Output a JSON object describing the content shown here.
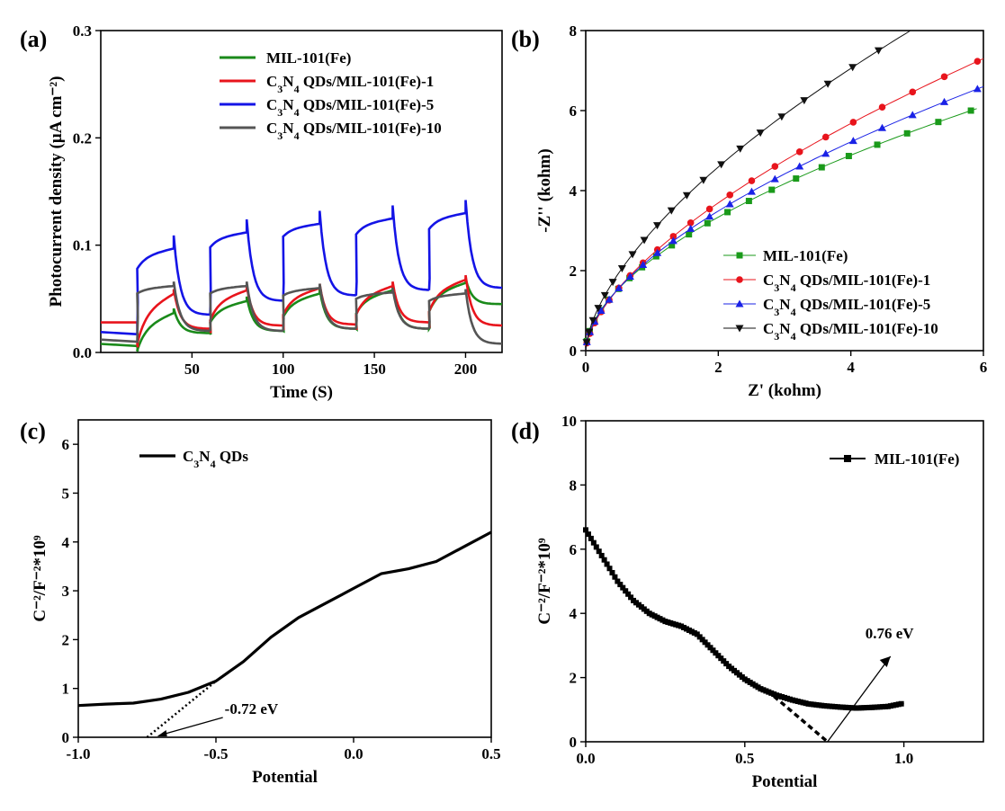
{
  "panels": [
    {
      "label": "(a)",
      "chart_data": {
        "type": "line",
        "title": "",
        "xlabel": "Time (S)",
        "ylabel": "Photocurrent density (µA cm⁻²)",
        "xlim": [
          0,
          220
        ],
        "ylim": [
          0.0,
          0.3
        ],
        "xticks": [
          50,
          100,
          150,
          200
        ],
        "yticks": [
          0.0,
          0.1,
          0.2,
          0.3
        ],
        "ytick_labels": [
          "0.0",
          "0.1",
          "0.2",
          "0.3"
        ],
        "light_on_times": [
          20,
          60,
          100,
          140,
          180
        ],
        "light_off_times": [
          40,
          80,
          120,
          160,
          200
        ],
        "series": [
          {
            "name": "MIL-101(Fe)",
            "color": "#1a8a1a",
            "dark": [
              0.006,
              0.018,
              0.02,
              0.022,
              0.022
            ],
            "on_start": [
              0.002,
              0.028,
              0.033,
              0.036,
              0.038
            ],
            "on_end": [
              0.037,
              0.048,
              0.055,
              0.058,
              0.065
            ],
            "after_off": [
              0.045
            ]
          },
          {
            "name": "C3N4 QDs/MIL-101(Fe)-1",
            "color": "#e8141c",
            "dark": [
              0.028,
              0.022,
              0.025,
              0.026,
              0.028
            ],
            "on_start": [
              0.008,
              0.03,
              0.035,
              0.035,
              0.038
            ],
            "on_end": [
              0.055,
              0.058,
              0.06,
              0.062,
              0.068
            ],
            "after_off": [
              0.025
            ]
          },
          {
            "name": "C3N4 QDs/MIL-101(Fe)-5",
            "color": "#1414e6",
            "dark": [
              0.017,
              0.035,
              0.048,
              0.053,
              0.058
            ],
            "on_start": [
              0.078,
              0.098,
              0.108,
              0.11,
              0.115
            ],
            "on_end": [
              0.097,
              0.112,
              0.12,
              0.125,
              0.13
            ],
            "after_off": [
              0.06
            ]
          },
          {
            "name": "C3N4 QDs/MIL-101(Fe)-10",
            "color": "#555555",
            "dark": [
              0.01,
              0.02,
              0.02,
              0.022,
              0.022
            ],
            "on_start": [
              0.055,
              0.055,
              0.053,
              0.05,
              0.048
            ],
            "on_end": [
              0.062,
              0.062,
              0.06,
              0.056,
              0.055
            ],
            "after_off": [
              0.008
            ]
          }
        ]
      }
    },
    {
      "label": "(b)",
      "chart_data": {
        "type": "line",
        "title": "",
        "xlabel": "Z' (kohm)",
        "ylabel": "-Z'' (kohm)",
        "xlim": [
          0,
          6
        ],
        "ylim": [
          0,
          8
        ],
        "xticks": [
          0,
          2,
          4,
          6
        ],
        "yticks": [
          0,
          2,
          4,
          6,
          8
        ],
        "series": [
          {
            "name": "MIL-101(Fe)",
            "color": "#1a9a1a",
            "marker": "square",
            "x_max": 5.9,
            "y_at_max": 6.05,
            "shape": 0.55
          },
          {
            "name": "C3N4 QDs/MIL-101(Fe)-1",
            "color": "#e8141c",
            "marker": "circle",
            "x_max": 6.0,
            "y_at_max": 7.3,
            "shape": 0.62
          },
          {
            "name": "C3N4 QDs/MIL-101(Fe)-5",
            "color": "#1a22e6",
            "marker": "triangle-up",
            "x_max": 6.0,
            "y_at_max": 6.6,
            "shape": 0.58
          },
          {
            "name": "C3N4 QDs/MIL-101(Fe)-10",
            "color": "#111111",
            "marker": "triangle-down",
            "x_max": 4.9,
            "y_at_max": 8.0,
            "shape": 0.62
          }
        ]
      }
    },
    {
      "label": "(c)",
      "chart_data": {
        "type": "line",
        "title": "",
        "xlabel": "Potential",
        "ylabel": "C⁻²/F⁻²*10⁹",
        "xlim": [
          -1.0,
          0.5
        ],
        "ylim": [
          0,
          6.5
        ],
        "xticks": [
          -1.0,
          -0.5,
          0.0,
          0.5
        ],
        "xtick_labels": [
          "-1.0",
          "-0.5",
          "0.0",
          "0.5"
        ],
        "yticks": [
          0,
          1,
          2,
          3,
          4,
          5,
          6
        ],
        "series": [
          {
            "name": "C3N4 QDs",
            "color": "#000000",
            "x": [
              -1.0,
              -0.9,
              -0.8,
              -0.7,
              -0.6,
              -0.5,
              -0.4,
              -0.3,
              -0.2,
              -0.1,
              0.0,
              0.1,
              0.2,
              0.3,
              0.4,
              0.5
            ],
            "y": [
              0.65,
              0.68,
              0.7,
              0.78,
              0.92,
              1.15,
              1.55,
              2.05,
              2.45,
              2.75,
              3.05,
              3.35,
              3.45,
              3.6,
              3.9,
              4.2
            ]
          }
        ],
        "tangent": {
          "x": [
            -0.75,
            -0.5
          ],
          "y": [
            0.0,
            1.15
          ]
        },
        "annotation": "-0.72 eV",
        "annotation_point": [
          -0.72,
          0.0
        ]
      }
    },
    {
      "label": "(d)",
      "chart_data": {
        "type": "line",
        "title": "",
        "xlabel": "Potential",
        "ylabel": "C⁻²/F⁻²*10⁹",
        "xlim": [
          0.0,
          1.25
        ],
        "ylim": [
          0,
          10
        ],
        "xticks": [
          0.0,
          0.5,
          1.0
        ],
        "xtick_labels": [
          "0.0",
          "0.5",
          "1.0"
        ],
        "yticks": [
          0,
          2,
          4,
          6,
          8,
          10
        ],
        "series": [
          {
            "name": "MIL-101(Fe)",
            "color": "#000000",
            "x": [
              0.0,
              0.05,
              0.1,
              0.15,
              0.2,
              0.25,
              0.3,
              0.35,
              0.4,
              0.45,
              0.5,
              0.55,
              0.6,
              0.65,
              0.7,
              0.75,
              0.8,
              0.85,
              0.9,
              0.95,
              1.0
            ],
            "y": [
              6.6,
              5.8,
              5.0,
              4.4,
              4.0,
              3.75,
              3.6,
              3.35,
              2.85,
              2.35,
              1.95,
              1.65,
              1.45,
              1.3,
              1.18,
              1.12,
              1.08,
              1.05,
              1.07,
              1.1,
              1.2
            ]
          }
        ],
        "tangent": {
          "x": [
            0.57,
            0.76
          ],
          "y": [
            1.6,
            0.0
          ]
        },
        "annotation": "0.76 eV",
        "annotation_point": [
          0.76,
          0.0
        ]
      }
    }
  ]
}
